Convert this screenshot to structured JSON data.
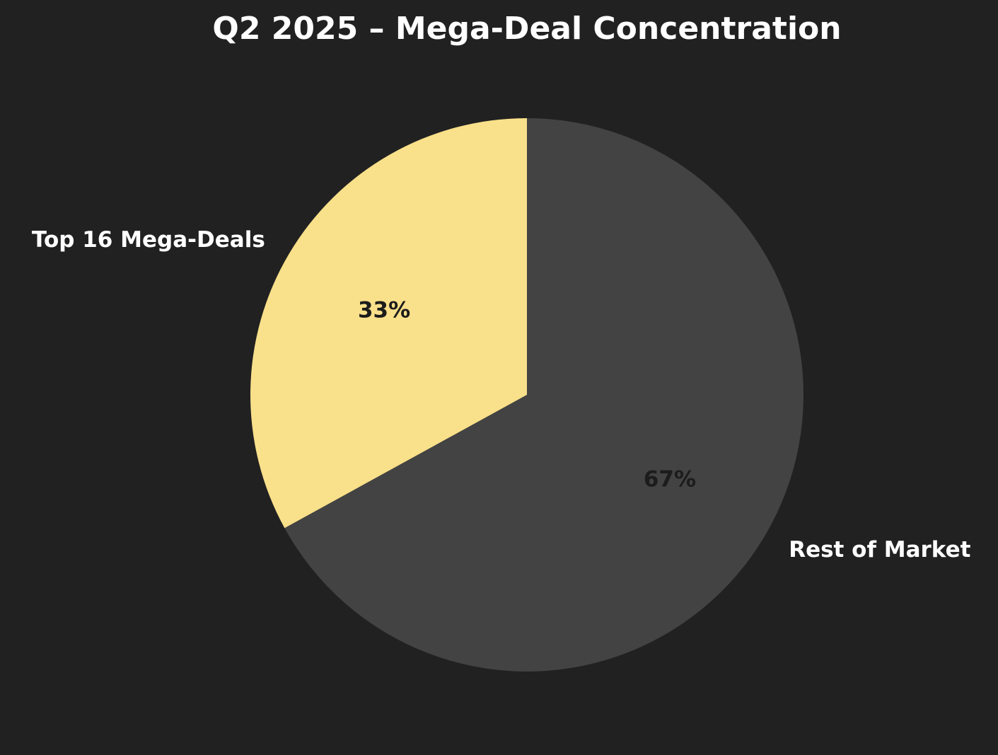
{
  "chart_data": {
    "type": "pie",
    "title": "Q2 2025 – Mega-Deal Concentration",
    "slices": [
      {
        "label": "Top 16 Mega-Deals",
        "value": 33,
        "pct_label": "33%",
        "color": "#f9e08a"
      },
      {
        "label": "Rest of Market",
        "value": 67,
        "pct_label": "67%",
        "color": "#434343"
      }
    ],
    "start_angle_deg": 90,
    "direction": "counterclockwise"
  },
  "background_color": "#212121"
}
